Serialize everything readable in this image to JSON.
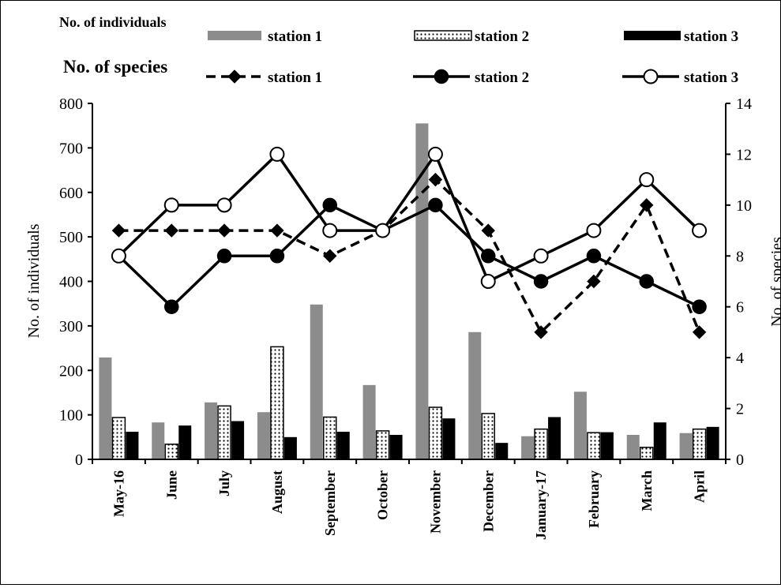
{
  "chart_data": {
    "type": "bar",
    "categories": [
      "May-16",
      "June",
      "July",
      "August",
      "September",
      "October",
      "November",
      "December",
      "January-17",
      "February",
      "March",
      "April"
    ],
    "bar_series": [
      {
        "name": "station 1",
        "values": [
          229,
          83,
          128,
          106,
          348,
          167,
          755,
          286,
          52,
          152,
          55,
          59
        ]
      },
      {
        "name": "station 2",
        "values": [
          94,
          34,
          120,
          253,
          95,
          64,
          117,
          103,
          68,
          60,
          27,
          68
        ]
      },
      {
        "name": "station 3",
        "values": [
          62,
          76,
          86,
          50,
          62,
          55,
          92,
          37,
          95,
          61,
          83,
          73
        ]
      }
    ],
    "line_series": [
      {
        "name": "station 1",
        "values": [
          9,
          9,
          9,
          9,
          8,
          9,
          11,
          9,
          5,
          7,
          10,
          5
        ]
      },
      {
        "name": "station 2",
        "values": [
          8,
          6,
          8,
          8,
          10,
          9,
          10,
          8,
          7,
          8,
          7,
          6
        ]
      },
      {
        "name": "station 3",
        "values": [
          8,
          10,
          10,
          12,
          9,
          9,
          12,
          7,
          8,
          9,
          11,
          9
        ]
      }
    ],
    "ylabel": "No. of individuals",
    "y2label": "No. of species",
    "ylim": [
      0,
      800
    ],
    "y2lim": [
      0,
      14
    ],
    "yticks": [
      "0",
      "100",
      "200",
      "300",
      "400",
      "500",
      "600",
      "700",
      "800"
    ],
    "y2ticks": [
      "0",
      "2",
      "4",
      "6",
      "8",
      "10",
      "12",
      "14"
    ],
    "legend": {
      "individuals_heading": "No. of individuals",
      "species_heading": "No. of species",
      "placement": "top"
    },
    "grid": false,
    "colors": {
      "station1_bar": "#8c8c8c",
      "station2_bar": "#ffffff",
      "station3_bar": "#000000",
      "lines": "#000000"
    }
  }
}
